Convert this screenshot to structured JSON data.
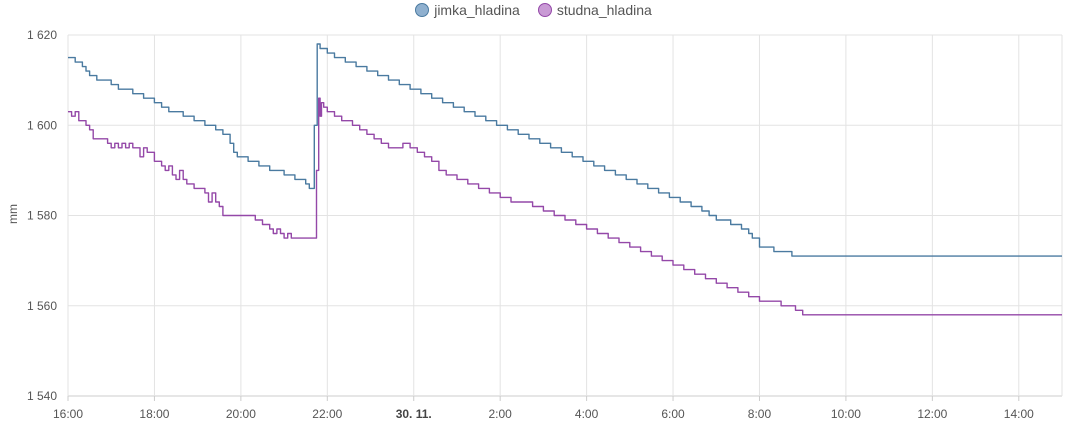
{
  "chart_data": {
    "type": "line",
    "ylabel": "mm",
    "ylim": [
      1540,
      1620
    ],
    "yticks": [
      {
        "value": 1540,
        "label": "1 540"
      },
      {
        "value": 1560,
        "label": "1 560"
      },
      {
        "value": 1580,
        "label": "1 580"
      },
      {
        "value": 1600,
        "label": "1 600"
      },
      {
        "value": 1620,
        "label": "1 620"
      }
    ],
    "xlim": [
      "2023-11-29 16:00",
      "2023-11-30 15:00"
    ],
    "xticks": [
      {
        "time": "2023-11-29 16:00",
        "label": "16:00",
        "bold": false
      },
      {
        "time": "2023-11-29 18:00",
        "label": "18:00",
        "bold": false
      },
      {
        "time": "2023-11-29 20:00",
        "label": "20:00",
        "bold": false
      },
      {
        "time": "2023-11-29 22:00",
        "label": "22:00",
        "bold": false
      },
      {
        "time": "2023-11-30 00:00",
        "label": "30. 11.",
        "bold": true
      },
      {
        "time": "2023-11-30 02:00",
        "label": "2:00",
        "bold": false
      },
      {
        "time": "2023-11-30 04:00",
        "label": "4:00",
        "bold": false
      },
      {
        "time": "2023-11-30 06:00",
        "label": "6:00",
        "bold": false
      },
      {
        "time": "2023-11-30 08:00",
        "label": "8:00",
        "bold": false
      },
      {
        "time": "2023-11-30 10:00",
        "label": "10:00",
        "bold": false
      },
      {
        "time": "2023-11-30 12:00",
        "label": "12:00",
        "bold": false
      },
      {
        "time": "2023-11-30 14:00",
        "label": "14:00",
        "bold": false
      }
    ],
    "grid": true,
    "legend_position": "top-center",
    "series": [
      {
        "name": "jimka_hladina",
        "color": "#4a7aa0",
        "legend_fill": "#8fb0cf",
        "step": true,
        "points": [
          [
            "2023-11-29 16:00",
            1615
          ],
          [
            "2023-11-29 16:10",
            1614
          ],
          [
            "2023-11-29 16:20",
            1613
          ],
          [
            "2023-11-29 16:25",
            1612
          ],
          [
            "2023-11-29 16:30",
            1611
          ],
          [
            "2023-11-29 16:40",
            1610
          ],
          [
            "2023-11-29 17:00",
            1609
          ],
          [
            "2023-11-29 17:10",
            1608
          ],
          [
            "2023-11-29 17:30",
            1607
          ],
          [
            "2023-11-29 17:45",
            1606
          ],
          [
            "2023-11-29 18:00",
            1605
          ],
          [
            "2023-11-29 18:10",
            1604
          ],
          [
            "2023-11-29 18:20",
            1603
          ],
          [
            "2023-11-29 18:40",
            1602
          ],
          [
            "2023-11-29 18:55",
            1601
          ],
          [
            "2023-11-29 19:10",
            1600
          ],
          [
            "2023-11-29 19:25",
            1599
          ],
          [
            "2023-11-29 19:35",
            1598
          ],
          [
            "2023-11-29 19:45",
            1596
          ],
          [
            "2023-11-29 19:50",
            1594
          ],
          [
            "2023-11-29 19:55",
            1593
          ],
          [
            "2023-11-29 20:10",
            1592
          ],
          [
            "2023-11-29 20:25",
            1591
          ],
          [
            "2023-11-29 20:40",
            1590
          ],
          [
            "2023-11-29 21:00",
            1589
          ],
          [
            "2023-11-29 21:15",
            1588
          ],
          [
            "2023-11-29 21:30",
            1587
          ],
          [
            "2023-11-29 21:35",
            1586
          ],
          [
            "2023-11-29 21:42",
            1600
          ],
          [
            "2023-11-29 21:46",
            1618
          ],
          [
            "2023-11-29 21:50",
            1617
          ],
          [
            "2023-11-29 22:00",
            1616
          ],
          [
            "2023-11-29 22:10",
            1615
          ],
          [
            "2023-11-29 22:25",
            1614
          ],
          [
            "2023-11-29 22:40",
            1613
          ],
          [
            "2023-11-29 22:55",
            1612
          ],
          [
            "2023-11-29 23:10",
            1611
          ],
          [
            "2023-11-29 23:25",
            1610
          ],
          [
            "2023-11-29 23:40",
            1609
          ],
          [
            "2023-11-29 23:55",
            1608
          ],
          [
            "2023-11-30 00:10",
            1607
          ],
          [
            "2023-11-30 00:25",
            1606
          ],
          [
            "2023-11-30 00:40",
            1605
          ],
          [
            "2023-11-30 00:55",
            1604
          ],
          [
            "2023-11-30 01:10",
            1603
          ],
          [
            "2023-11-30 01:25",
            1602
          ],
          [
            "2023-11-30 01:40",
            1601
          ],
          [
            "2023-11-30 01:55",
            1600
          ],
          [
            "2023-11-30 02:10",
            1599
          ],
          [
            "2023-11-30 02:25",
            1598
          ],
          [
            "2023-11-30 02:40",
            1597
          ],
          [
            "2023-11-30 02:55",
            1596
          ],
          [
            "2023-11-30 03:10",
            1595
          ],
          [
            "2023-11-30 03:25",
            1594
          ],
          [
            "2023-11-30 03:40",
            1593
          ],
          [
            "2023-11-30 03:55",
            1592
          ],
          [
            "2023-11-30 04:10",
            1591
          ],
          [
            "2023-11-30 04:25",
            1590
          ],
          [
            "2023-11-30 04:40",
            1589
          ],
          [
            "2023-11-30 04:55",
            1588
          ],
          [
            "2023-11-30 05:10",
            1587
          ],
          [
            "2023-11-30 05:25",
            1586
          ],
          [
            "2023-11-30 05:40",
            1585
          ],
          [
            "2023-11-30 05:55",
            1584
          ],
          [
            "2023-11-30 06:10",
            1583
          ],
          [
            "2023-11-30 06:25",
            1582
          ],
          [
            "2023-11-30 06:40",
            1581
          ],
          [
            "2023-11-30 06:50",
            1580
          ],
          [
            "2023-11-30 07:00",
            1579
          ],
          [
            "2023-11-30 07:20",
            1578
          ],
          [
            "2023-11-30 07:35",
            1577
          ],
          [
            "2023-11-30 07:45",
            1576
          ],
          [
            "2023-11-30 07:50",
            1575
          ],
          [
            "2023-11-30 08:00",
            1573
          ],
          [
            "2023-11-30 08:20",
            1572
          ],
          [
            "2023-11-30 08:45",
            1571
          ],
          [
            "2023-11-30 15:00",
            1571
          ]
        ]
      },
      {
        "name": "studna_hladina",
        "color": "#9448a8",
        "legend_fill": "#c99ad5",
        "step": true,
        "points": [
          [
            "2023-11-29 16:00",
            1603
          ],
          [
            "2023-11-29 16:05",
            1602
          ],
          [
            "2023-11-29 16:10",
            1603
          ],
          [
            "2023-11-29 16:15",
            1601
          ],
          [
            "2023-11-29 16:25",
            1600
          ],
          [
            "2023-11-29 16:30",
            1599
          ],
          [
            "2023-11-29 16:35",
            1597
          ],
          [
            "2023-11-29 16:55",
            1596
          ],
          [
            "2023-11-29 17:00",
            1595
          ],
          [
            "2023-11-29 17:05",
            1596
          ],
          [
            "2023-11-29 17:10",
            1595
          ],
          [
            "2023-11-29 17:15",
            1596
          ],
          [
            "2023-11-29 17:20",
            1595
          ],
          [
            "2023-11-29 17:25",
            1596
          ],
          [
            "2023-11-29 17:30",
            1595
          ],
          [
            "2023-11-29 17:40",
            1593
          ],
          [
            "2023-11-29 17:45",
            1595
          ],
          [
            "2023-11-29 17:50",
            1594
          ],
          [
            "2023-11-29 18:00",
            1592
          ],
          [
            "2023-11-29 18:10",
            1591
          ],
          [
            "2023-11-29 18:15",
            1590
          ],
          [
            "2023-11-29 18:20",
            1591
          ],
          [
            "2023-11-29 18:25",
            1589
          ],
          [
            "2023-11-29 18:30",
            1588
          ],
          [
            "2023-11-29 18:35",
            1590
          ],
          [
            "2023-11-29 18:40",
            1588
          ],
          [
            "2023-11-29 18:45",
            1587
          ],
          [
            "2023-11-29 18:55",
            1586
          ],
          [
            "2023-11-29 19:10",
            1585
          ],
          [
            "2023-11-29 19:15",
            1583
          ],
          [
            "2023-11-29 19:20",
            1585
          ],
          [
            "2023-11-29 19:25",
            1583
          ],
          [
            "2023-11-29 19:30",
            1582
          ],
          [
            "2023-11-29 19:35",
            1580
          ],
          [
            "2023-11-29 20:00",
            1580
          ],
          [
            "2023-11-29 20:20",
            1579
          ],
          [
            "2023-11-29 20:30",
            1578
          ],
          [
            "2023-11-29 20:40",
            1577
          ],
          [
            "2023-11-29 20:45",
            1576
          ],
          [
            "2023-11-29 20:50",
            1577
          ],
          [
            "2023-11-29 20:55",
            1576
          ],
          [
            "2023-11-29 21:00",
            1575
          ],
          [
            "2023-11-29 21:05",
            1576
          ],
          [
            "2023-11-29 21:10",
            1575
          ],
          [
            "2023-11-29 21:40",
            1575
          ],
          [
            "2023-11-29 21:45",
            1590
          ],
          [
            "2023-11-29 21:48",
            1606
          ],
          [
            "2023-11-29 21:50",
            1602
          ],
          [
            "2023-11-29 21:52",
            1605
          ],
          [
            "2023-11-29 21:55",
            1604
          ],
          [
            "2023-11-29 22:00",
            1603
          ],
          [
            "2023-11-29 22:10",
            1602
          ],
          [
            "2023-11-29 22:20",
            1601
          ],
          [
            "2023-11-29 22:35",
            1600
          ],
          [
            "2023-11-29 22:45",
            1599
          ],
          [
            "2023-11-29 22:55",
            1598
          ],
          [
            "2023-11-29 23:05",
            1597
          ],
          [
            "2023-11-29 23:15",
            1596
          ],
          [
            "2023-11-29 23:25",
            1595
          ],
          [
            "2023-11-29 23:45",
            1596
          ],
          [
            "2023-11-29 23:55",
            1595
          ],
          [
            "2023-11-30 00:05",
            1594
          ],
          [
            "2023-11-30 00:15",
            1593
          ],
          [
            "2023-11-30 00:25",
            1592
          ],
          [
            "2023-11-30 00:35",
            1590
          ],
          [
            "2023-11-30 00:45",
            1589
          ],
          [
            "2023-11-30 01:00",
            1588
          ],
          [
            "2023-11-30 01:15",
            1587
          ],
          [
            "2023-11-30 01:30",
            1586
          ],
          [
            "2023-11-30 01:45",
            1585
          ],
          [
            "2023-11-30 02:00",
            1584
          ],
          [
            "2023-11-30 02:15",
            1583
          ],
          [
            "2023-11-30 02:30",
            1583
          ],
          [
            "2023-11-30 02:45",
            1582
          ],
          [
            "2023-11-30 03:00",
            1581
          ],
          [
            "2023-11-30 03:15",
            1580
          ],
          [
            "2023-11-30 03:30",
            1579
          ],
          [
            "2023-11-30 03:45",
            1578
          ],
          [
            "2023-11-30 04:00",
            1577
          ],
          [
            "2023-11-30 04:15",
            1576
          ],
          [
            "2023-11-30 04:30",
            1575
          ],
          [
            "2023-11-30 04:45",
            1574
          ],
          [
            "2023-11-30 05:00",
            1573
          ],
          [
            "2023-11-30 05:15",
            1572
          ],
          [
            "2023-11-30 05:30",
            1571
          ],
          [
            "2023-11-30 05:45",
            1570
          ],
          [
            "2023-11-30 06:00",
            1569
          ],
          [
            "2023-11-30 06:15",
            1568
          ],
          [
            "2023-11-30 06:30",
            1567
          ],
          [
            "2023-11-30 06:45",
            1566
          ],
          [
            "2023-11-30 07:00",
            1565
          ],
          [
            "2023-11-30 07:15",
            1564
          ],
          [
            "2023-11-30 07:30",
            1563
          ],
          [
            "2023-11-30 07:45",
            1562
          ],
          [
            "2023-11-30 08:00",
            1561
          ],
          [
            "2023-11-30 08:30",
            1560
          ],
          [
            "2023-11-30 08:50",
            1559
          ],
          [
            "2023-11-30 09:00",
            1558
          ],
          [
            "2023-11-30 15:00",
            1558
          ]
        ]
      }
    ]
  }
}
